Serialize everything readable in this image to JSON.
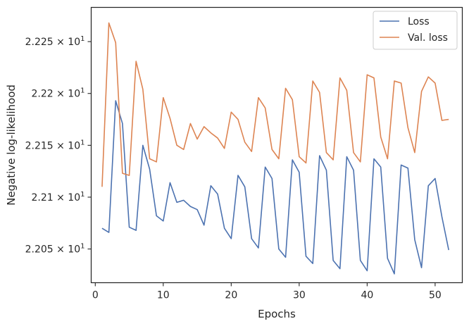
{
  "chart_data": {
    "type": "line",
    "title": "",
    "xlabel": "Epochs",
    "ylabel": "Negative log-likelihood",
    "xlim": [
      -0.6,
      54.0
    ],
    "ylim": [
      22.0175,
      22.283
    ],
    "x_ticks": [
      0,
      10,
      20,
      30,
      40,
      50
    ],
    "y_ticks": [
      {
        "value": 22.05,
        "mantissa": "2.205",
        "times": "×",
        "base": "10",
        "exp": "1"
      },
      {
        "value": 22.1,
        "mantissa": "2.21",
        "times": "×",
        "base": "10",
        "exp": "1"
      },
      {
        "value": 22.15,
        "mantissa": "2.215",
        "times": "×",
        "base": "10",
        "exp": "1"
      },
      {
        "value": 22.2,
        "mantissa": "2.22",
        "times": "×",
        "base": "10",
        "exp": "1"
      },
      {
        "value": 22.25,
        "mantissa": "2.225",
        "times": "×",
        "base": "10",
        "exp": "1"
      }
    ],
    "grid": false,
    "legend_position": "top-right",
    "x": [
      1,
      2,
      3,
      4,
      5,
      6,
      7,
      8,
      9,
      10,
      11,
      12,
      13,
      14,
      15,
      16,
      17,
      18,
      19,
      20,
      21,
      22,
      23,
      24,
      25,
      26,
      27,
      28,
      29,
      30,
      31,
      32,
      33,
      34,
      35,
      36,
      37,
      38,
      39,
      40,
      41,
      42,
      43,
      44,
      45,
      46,
      47,
      48,
      49,
      50,
      51,
      52
    ],
    "series": [
      {
        "name": "Loss",
        "color": "#4c72b0",
        "values": [
          22.07,
          22.066,
          22.193,
          22.171,
          22.071,
          22.068,
          22.15,
          22.127,
          22.082,
          22.077,
          22.114,
          22.095,
          22.097,
          22.091,
          22.088,
          22.073,
          22.111,
          22.103,
          22.07,
          22.06,
          22.121,
          22.11,
          22.06,
          22.051,
          22.129,
          22.118,
          22.05,
          22.042,
          22.136,
          22.124,
          22.043,
          22.036,
          22.14,
          22.126,
          22.039,
          22.031,
          22.139,
          22.126,
          22.039,
          22.029,
          22.137,
          22.129,
          22.041,
          22.026,
          22.131,
          22.128,
          22.059,
          22.032,
          22.111,
          22.118,
          22.081,
          22.049
        ]
      },
      {
        "name": "Val. loss",
        "color": "#dd8452",
        "values": [
          22.11,
          22.268,
          22.249,
          22.123,
          22.121,
          22.231,
          22.204,
          22.137,
          22.134,
          22.196,
          22.176,
          22.15,
          22.146,
          22.171,
          22.156,
          22.168,
          22.162,
          22.157,
          22.147,
          22.182,
          22.175,
          22.153,
          22.144,
          22.196,
          22.186,
          22.146,
          22.137,
          22.205,
          22.194,
          22.139,
          22.133,
          22.212,
          22.201,
          22.143,
          22.136,
          22.215,
          22.203,
          22.143,
          22.134,
          22.218,
          22.215,
          22.158,
          22.137,
          22.212,
          22.21,
          22.167,
          22.143,
          22.202,
          22.216,
          22.21,
          22.174,
          22.175
        ]
      }
    ]
  }
}
